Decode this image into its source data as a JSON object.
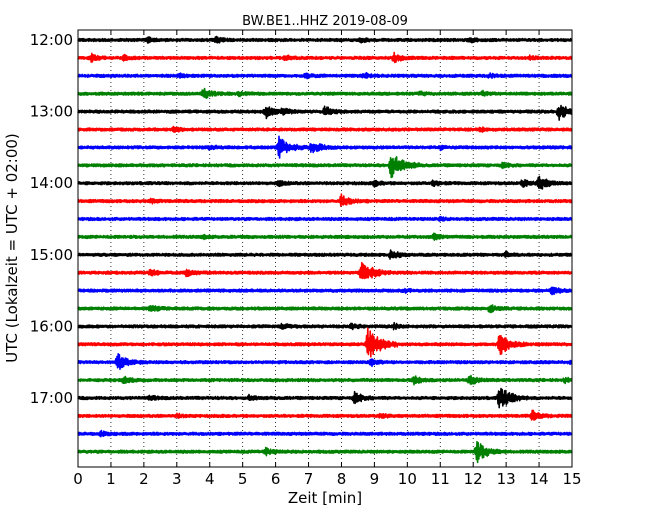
{
  "chart_data": {
    "type": "line",
    "title": "BW.BE1..HHZ 2019-08-09",
    "xlabel": "Zeit  [min]",
    "ylabel": "UTC (Lokalzeit = UTC + 02:00)",
    "xlim": [
      0,
      15
    ],
    "x_ticks": [
      "0",
      "1",
      "2",
      "3",
      "4",
      "5",
      "6",
      "7",
      "8",
      "9",
      "10",
      "11",
      "12",
      "13",
      "14",
      "15"
    ],
    "y_ticks": [
      "12:00",
      "13:00",
      "14:00",
      "15:00",
      "16:00",
      "17:00"
    ],
    "grid": "vertical dotted at each minute",
    "trace_interval_minutes": 15,
    "color_cycle": [
      "#000000",
      "#ff0000",
      "#0000ff",
      "#008000"
    ],
    "series": [
      {
        "start": "12:00",
        "events": [
          {
            "t": 2.1,
            "amp": 0.3
          },
          {
            "t": 4.2,
            "amp": 0.35
          },
          {
            "t": 8.6,
            "amp": 0.25
          },
          {
            "t": 11.9,
            "amp": 0.25
          }
        ]
      },
      {
        "start": "12:15",
        "events": [
          {
            "t": 0.4,
            "amp": 0.45
          },
          {
            "t": 1.4,
            "amp": 0.25
          },
          {
            "t": 6.3,
            "amp": 0.3
          },
          {
            "t": 9.6,
            "amp": 0.55
          },
          {
            "t": 13.7,
            "amp": 0.2
          }
        ]
      },
      {
        "start": "12:30",
        "events": [
          {
            "t": 3.1,
            "amp": 0.2
          },
          {
            "t": 6.9,
            "amp": 0.25
          },
          {
            "t": 8.7,
            "amp": 0.3
          },
          {
            "t": 12.5,
            "amp": 0.2
          }
        ]
      },
      {
        "start": "12:45",
        "events": [
          {
            "t": 3.8,
            "amp": 0.65
          },
          {
            "t": 4.9,
            "amp": 0.2
          },
          {
            "t": 10.4,
            "amp": 0.2
          },
          {
            "t": 12.3,
            "amp": 0.25
          }
        ]
      },
      {
        "start": "13:00",
        "events": [
          {
            "t": 5.7,
            "amp": 0.75
          },
          {
            "t": 6.2,
            "amp": 0.4
          },
          {
            "t": 7.5,
            "amp": 0.6
          },
          {
            "t": 14.6,
            "amp": 1.0
          }
        ]
      },
      {
        "start": "13:15",
        "events": [
          {
            "t": 2.9,
            "amp": 0.35
          },
          {
            "t": 12.2,
            "amp": 0.25
          }
        ]
      },
      {
        "start": "13:30",
        "events": [
          {
            "t": 4.0,
            "amp": 0.25
          },
          {
            "t": 6.1,
            "amp": 1.3
          },
          {
            "t": 7.1,
            "amp": 0.8
          },
          {
            "t": 11.0,
            "amp": 0.2
          }
        ]
      },
      {
        "start": "13:45",
        "events": [
          {
            "t": 9.5,
            "amp": 1.6
          },
          {
            "t": 12.9,
            "amp": 0.3
          }
        ]
      },
      {
        "start": "14:00",
        "events": [
          {
            "t": 6.1,
            "amp": 0.3
          },
          {
            "t": 9.0,
            "amp": 0.35
          },
          {
            "t": 10.8,
            "amp": 0.35
          },
          {
            "t": 13.5,
            "amp": 0.45
          },
          {
            "t": 14.0,
            "amp": 0.9
          }
        ]
      },
      {
        "start": "14:15",
        "events": [
          {
            "t": 2.2,
            "amp": 0.25
          },
          {
            "t": 8.0,
            "amp": 0.75
          }
        ]
      },
      {
        "start": "14:30",
        "events": [
          {
            "t": 11.0,
            "amp": 0.15
          }
        ]
      },
      {
        "start": "14:45",
        "events": [
          {
            "t": 10.8,
            "amp": 0.35
          },
          {
            "t": 3.8,
            "amp": 0.2
          }
        ]
      },
      {
        "start": "15:00",
        "events": [
          {
            "t": 9.5,
            "amp": 0.6
          },
          {
            "t": 13.0,
            "amp": 0.3
          }
        ]
      },
      {
        "start": "15:15",
        "events": [
          {
            "t": 2.2,
            "amp": 0.35
          },
          {
            "t": 3.3,
            "amp": 0.45
          },
          {
            "t": 8.6,
            "amp": 1.5
          }
        ]
      },
      {
        "start": "15:30",
        "events": [
          {
            "t": 14.4,
            "amp": 0.45
          },
          {
            "t": 9.9,
            "amp": 0.2
          }
        ]
      },
      {
        "start": "15:45",
        "events": [
          {
            "t": 2.2,
            "amp": 0.45
          },
          {
            "t": 12.5,
            "amp": 0.45
          }
        ]
      },
      {
        "start": "16:00",
        "events": [
          {
            "t": 6.2,
            "amp": 0.3
          },
          {
            "t": 8.3,
            "amp": 0.35
          },
          {
            "t": 9.6,
            "amp": 0.3
          }
        ]
      },
      {
        "start": "16:15",
        "events": [
          {
            "t": 8.8,
            "amp": 1.9
          },
          {
            "t": 12.8,
            "amp": 1.3
          }
        ]
      },
      {
        "start": "16:30",
        "events": [
          {
            "t": 1.2,
            "amp": 1.0
          },
          {
            "t": 8.9,
            "amp": 0.4
          },
          {
            "t": 15.0,
            "amp": 0.35
          }
        ]
      },
      {
        "start": "16:45",
        "events": [
          {
            "t": 1.4,
            "amp": 0.45
          },
          {
            "t": 10.2,
            "amp": 0.5
          },
          {
            "t": 11.9,
            "amp": 0.6
          },
          {
            "t": 14.8,
            "amp": 0.3
          }
        ]
      },
      {
        "start": "17:00",
        "events": [
          {
            "t": 8.4,
            "amp": 0.7
          },
          {
            "t": 12.8,
            "amp": 1.5
          },
          {
            "t": 2.2,
            "amp": 0.25
          },
          {
            "t": 5.2,
            "amp": 0.3
          }
        ]
      },
      {
        "start": "17:15",
        "events": [
          {
            "t": 13.8,
            "amp": 0.6
          },
          {
            "t": 3.0,
            "amp": 0.2
          },
          {
            "t": 9.2,
            "amp": 0.25
          }
        ]
      },
      {
        "start": "17:30",
        "events": [
          {
            "t": 0.7,
            "amp": 0.25
          }
        ]
      },
      {
        "start": "17:45",
        "events": [
          {
            "t": 5.7,
            "amp": 0.45
          },
          {
            "t": 12.1,
            "amp": 1.3
          }
        ]
      }
    ]
  }
}
